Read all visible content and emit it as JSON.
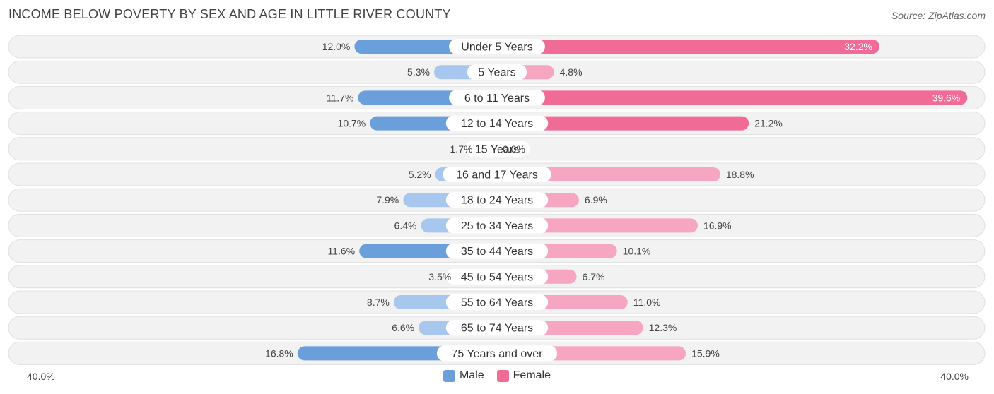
{
  "title": "INCOME BELOW POVERTY BY SEX AND AGE IN LITTLE RIVER COUNTY",
  "source": "Source: ZipAtlas.com",
  "axis": {
    "left_label": "40.0%",
    "right_label": "40.0%"
  },
  "legend": {
    "male_label": "Male",
    "female_label": "Female"
  },
  "colors": {
    "male_strong": "#6a9fdc",
    "male_light": "#a7c7ee",
    "female_strong": "#f06b96",
    "female_light": "#f6a6c1",
    "row_bg": "#f2f2f2",
    "row_border": "#e0e0e0"
  },
  "chart_data": {
    "type": "bar",
    "orientation": "horizontal-diverging",
    "title": "INCOME BELOW POVERTY BY SEX AND AGE IN LITTLE RIVER COUNTY",
    "xlim": [
      -40,
      40
    ],
    "categories": [
      "Under 5 Years",
      "5 Years",
      "6 to 11 Years",
      "12 to 14 Years",
      "15 Years",
      "16 and 17 Years",
      "18 to 24 Years",
      "25 to 34 Years",
      "35 to 44 Years",
      "45 to 54 Years",
      "55 to 64 Years",
      "65 to 74 Years",
      "75 Years and over"
    ],
    "series": [
      {
        "name": "Male",
        "values": [
          12.0,
          5.3,
          11.7,
          10.7,
          1.7,
          5.2,
          7.9,
          6.4,
          11.6,
          3.5,
          8.7,
          6.6,
          16.8
        ],
        "labels": [
          "12.0%",
          "5.3%",
          "11.7%",
          "10.7%",
          "1.7%",
          "5.2%",
          "7.9%",
          "6.4%",
          "11.6%",
          "3.5%",
          "8.7%",
          "6.6%",
          "16.8%"
        ]
      },
      {
        "name": "Female",
        "values": [
          32.2,
          4.8,
          39.6,
          21.2,
          0.0,
          18.8,
          6.9,
          16.9,
          10.1,
          6.7,
          11.0,
          12.3,
          15.9
        ],
        "labels": [
          "32.2%",
          "4.8%",
          "39.6%",
          "21.2%",
          "0.0%",
          "18.8%",
          "6.9%",
          "16.9%",
          "10.1%",
          "6.7%",
          "11.0%",
          "12.3%",
          "15.9%"
        ]
      }
    ]
  }
}
